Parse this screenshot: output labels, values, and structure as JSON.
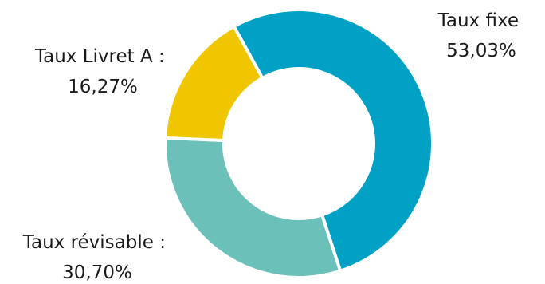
{
  "chart_data": {
    "type": "pie",
    "variant": "donut",
    "slices": [
      {
        "label_line1": "Taux fixe",
        "label_line2": "53,03%",
        "value": 53.03,
        "color": "#00A1C4"
      },
      {
        "label_line1": "Taux révisable :",
        "label_line2": "30,70%",
        "value": 30.7,
        "color": "#6BC1BA"
      },
      {
        "label_line1": "Taux Livret A :",
        "label_line2": "16,27%",
        "value": 16.27,
        "color": "#EFC600"
      }
    ]
  }
}
